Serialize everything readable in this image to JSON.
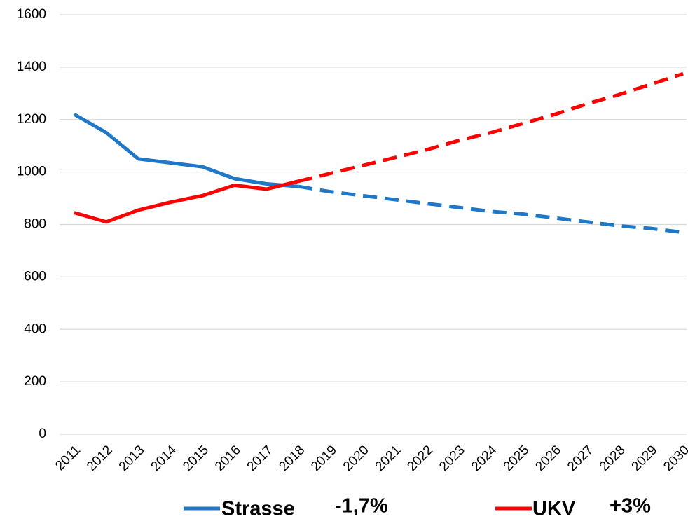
{
  "chart_data": {
    "type": "line",
    "categories": [
      "2011",
      "2012",
      "2013",
      "2014",
      "2015",
      "2016",
      "2017",
      "2018",
      "2019",
      "2020",
      "2021",
      "2022",
      "2023",
      "2024",
      "2025",
      "2026",
      "2027",
      "2028",
      "2029",
      "2030"
    ],
    "series": [
      {
        "name": "Strasse",
        "growth": "-1,7%",
        "color": "#1f77c8",
        "dash_from": "2018",
        "values": [
          1220,
          1150,
          1050,
          1035,
          1020,
          975,
          955,
          945,
          925,
          910,
          895,
          880,
          865,
          850,
          840,
          825,
          810,
          795,
          785,
          770
        ]
      },
      {
        "name": "UKV",
        "growth": "+3%",
        "color": "#ff0000",
        "dash_from": "2018",
        "values": [
          845,
          810,
          855,
          885,
          910,
          950,
          935,
          965,
          995,
          1025,
          1055,
          1085,
          1120,
          1150,
          1185,
          1220,
          1260,
          1295,
          1335,
          1375
        ]
      }
    ],
    "ylim": [
      0,
      1600
    ],
    "yticks": [
      0,
      200,
      400,
      600,
      800,
      1000,
      1200,
      1400,
      1600
    ],
    "grid": true
  }
}
